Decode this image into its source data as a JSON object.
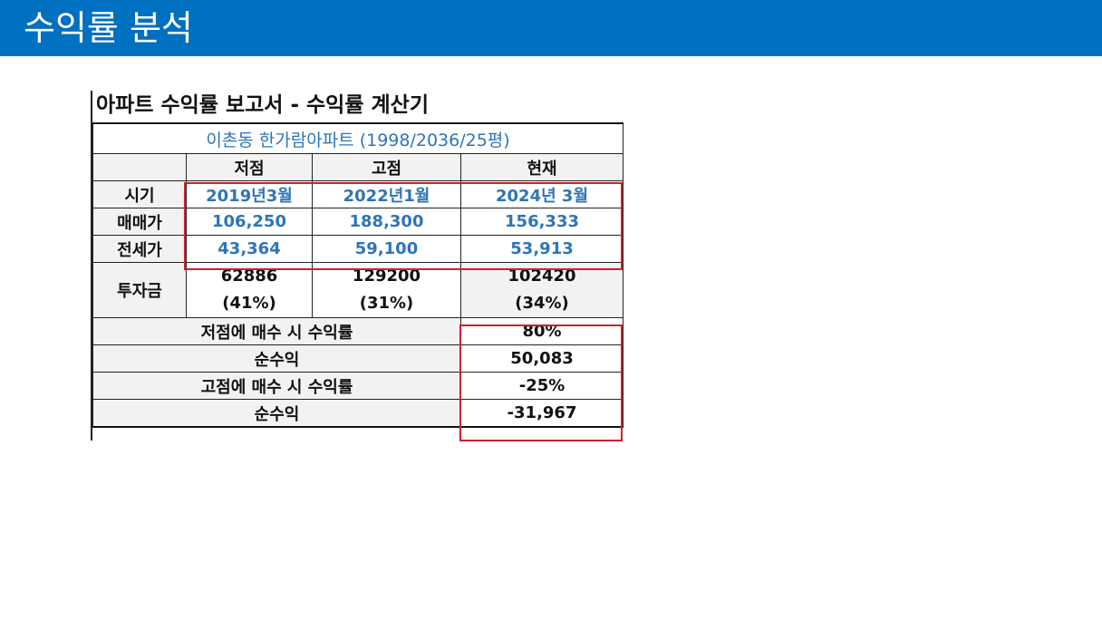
{
  "header": {
    "title": "수익률 분석"
  },
  "report": {
    "title": "아파트 수익률 보고서 - 수익률 계산기",
    "subtitle": "이촌동 한가람아파트 (1998/2036/25평)",
    "columns": [
      "저점",
      "고점",
      "현재"
    ],
    "rows": {
      "period": {
        "label": "시기",
        "values": [
          "2019년3월",
          "2022년1월",
          "2024년 3월"
        ]
      },
      "sale_price": {
        "label": "매매가",
        "values": [
          "106,250",
          "188,300",
          "156,333"
        ]
      },
      "jeonse_price": {
        "label": "전세가",
        "values": [
          "43,364",
          "59,100",
          "53,913"
        ]
      },
      "investment": {
        "label": "투자금",
        "amounts": [
          "62886",
          "129200",
          "102420"
        ],
        "ratios": [
          "(41%)",
          "(31%)",
          "(34%)"
        ]
      }
    },
    "summary": [
      {
        "label": "저점에 매수 시 수익률",
        "value": "80%"
      },
      {
        "label": "순수익",
        "value": "50,083"
      },
      {
        "label": "고점에 매수 시 수익률",
        "value": "-25%"
      },
      {
        "label": "순수익",
        "value": "-31,967"
      }
    ],
    "highlight_color": "#d0202a",
    "value_color": "#2e75b6",
    "header_color": "#0070c0"
  }
}
